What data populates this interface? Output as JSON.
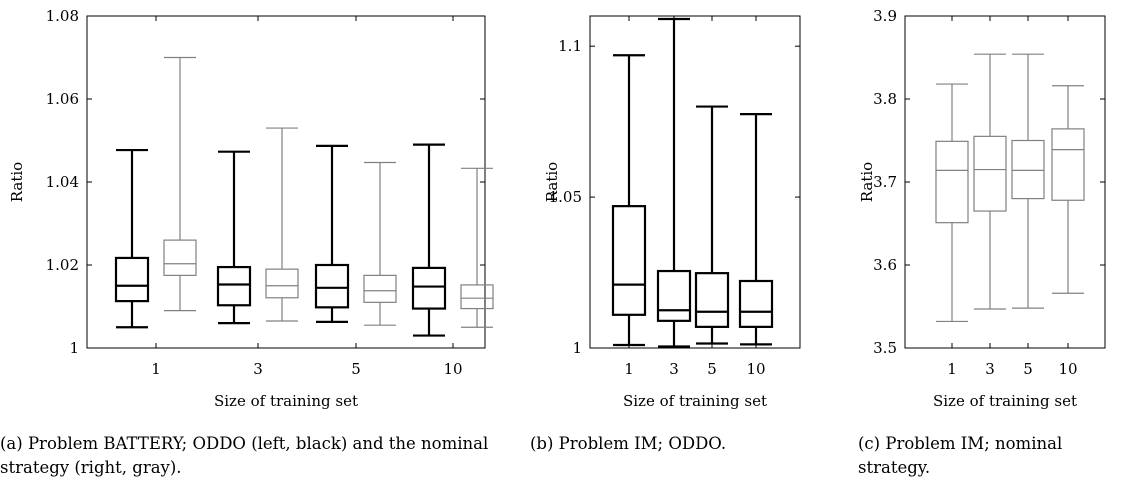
{
  "chart_data": [
    {
      "type": "boxplot",
      "xlabel": "Size of training set",
      "ylabel": "Ratio",
      "ylim": [
        1,
        1.08
      ],
      "yticks": [
        1,
        1.02,
        1.04,
        1.06,
        1.08
      ],
      "ytick_labels": [
        "1",
        "1.02",
        "1.04",
        "1.06",
        "1.08"
      ],
      "categories": [
        "1",
        "3",
        "5",
        "10"
      ],
      "caption": "(a) Problem BATTERY; ODDO (left, black) and the nominal strategy (right, gray).",
      "colors": {
        "oddo": "#000000",
        "nominal": "#808080"
      },
      "series": [
        {
          "values": [
            {
              "min": 1.005,
              "q1": 1.0113,
              "median": 1.015,
              "q3": 1.0217,
              "max": 1.0477
            },
            {
              "min": 1.006,
              "q1": 1.0103,
              "median": 1.0153,
              "q3": 1.0195,
              "max": 1.0473
            },
            {
              "min": 1.0063,
              "q1": 1.0098,
              "median": 1.0145,
              "q3": 1.02,
              "max": 1.0487
            },
            {
              "min": 1.003,
              "q1": 1.0095,
              "median": 1.0148,
              "q3": 1.0193,
              "max": 1.049
            }
          ]
        },
        {
          "values": [
            {
              "min": 1.009,
              "q1": 1.0175,
              "median": 1.0203,
              "q3": 1.026,
              "max": 1.07
            },
            {
              "min": 1.0065,
              "q1": 1.0121,
              "median": 1.015,
              "q3": 1.019,
              "max": 1.053
            },
            {
              "min": 1.0055,
              "q1": 1.011,
              "median": 1.0138,
              "q3": 1.0175,
              "max": 1.0447
            },
            {
              "min": 1.005,
              "q1": 1.0095,
              "median": 1.012,
              "q3": 1.0152,
              "max": 1.0433
            }
          ]
        }
      ]
    },
    {
      "type": "boxplot",
      "xlabel": "Size of training set",
      "ylabel": "Ratio",
      "ylim": [
        1,
        1.11
      ],
      "yticks": [
        1,
        1.05,
        1.1
      ],
      "ytick_labels": [
        "1",
        "1.05",
        "1.1"
      ],
      "categories": [
        "1",
        "3",
        "5",
        "10"
      ],
      "caption": "(b) Problem IM; ODDO.",
      "colors": {
        "oddo": "#000000"
      },
      "series": [
        {
          "values": [
            {
              "min": 1.001,
              "q1": 1.011,
              "median": 1.021,
              "q3": 1.047,
              "max": 1.097
            },
            {
              "min": 1.0005,
              "q1": 1.009,
              "median": 1.0125,
              "q3": 1.0255,
              "max": 1.109
            },
            {
              "min": 1.0015,
              "q1": 1.007,
              "median": 1.012,
              "q3": 1.0248,
              "max": 1.08
            },
            {
              "min": 1.0012,
              "q1": 1.007,
              "median": 1.012,
              "q3": 1.0222,
              "max": 1.0775
            }
          ]
        }
      ]
    },
    {
      "type": "boxplot",
      "xlabel": "Size of training set",
      "ylabel": "Ratio",
      "ylim": [
        3.5,
        3.9
      ],
      "yticks": [
        3.5,
        3.6,
        3.7,
        3.8,
        3.9
      ],
      "ytick_labels": [
        "3.5",
        "3.6",
        "3.7",
        "3.8",
        "3.9"
      ],
      "categories": [
        "1",
        "3",
        "5",
        "10"
      ],
      "caption": "(c) Problem IM; nominal strategy.",
      "colors": {
        "nominal": "#808080"
      },
      "series": [
        {
          "values": [
            {
              "min": 3.532,
              "q1": 3.651,
              "median": 3.714,
              "q3": 3.749,
              "max": 3.818
            },
            {
              "min": 3.547,
              "q1": 3.665,
              "median": 3.715,
              "q3": 3.755,
              "max": 3.854
            },
            {
              "min": 3.548,
              "q1": 3.68,
              "median": 3.714,
              "q3": 3.75,
              "max": 3.854
            },
            {
              "min": 3.566,
              "q1": 3.678,
              "median": 3.739,
              "q3": 3.764,
              "max": 3.816
            }
          ]
        }
      ]
    }
  ]
}
